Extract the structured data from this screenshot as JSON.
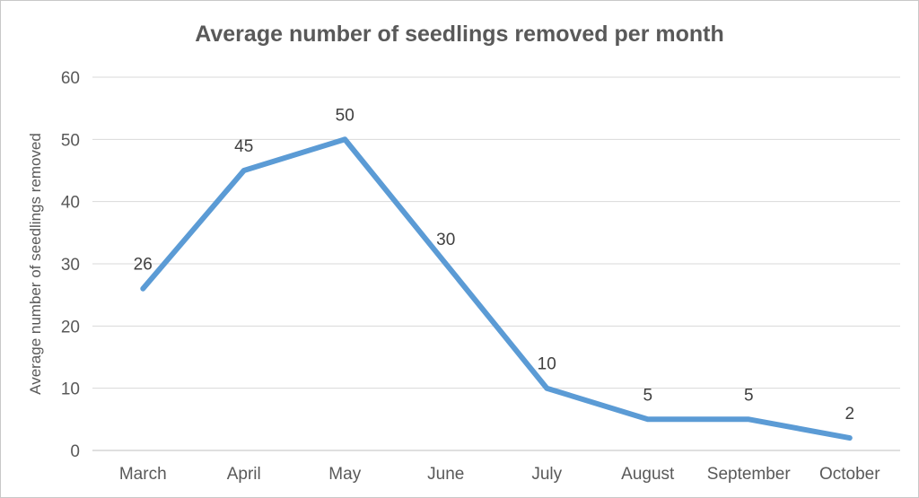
{
  "chart_data": {
    "type": "line",
    "title": "Average number of seedlings removed per month",
    "xlabel": "",
    "ylabel": "Average number of seedlings removed",
    "categories": [
      "March",
      "April",
      "May",
      "June",
      "July",
      "August",
      "September",
      "October"
    ],
    "values": [
      26,
      45,
      50,
      30,
      10,
      5,
      5,
      2
    ],
    "data_labels": [
      "26",
      "45",
      "50",
      "30",
      "10",
      "5",
      "5",
      "2"
    ],
    "ylim": [
      0,
      60
    ],
    "yticks": [
      0,
      10,
      20,
      30,
      40,
      50,
      60
    ],
    "grid": true,
    "legend": "none",
    "line_color": "#5B9BD5",
    "gridline_color": "#D9D9D9",
    "axis_line_color": "#BFBFBF",
    "title_color": "#595959",
    "tick_label_color": "#595959",
    "data_label_color": "#404040",
    "background_color": "#FFFFFF",
    "border_color": "#C8C8C8"
  }
}
